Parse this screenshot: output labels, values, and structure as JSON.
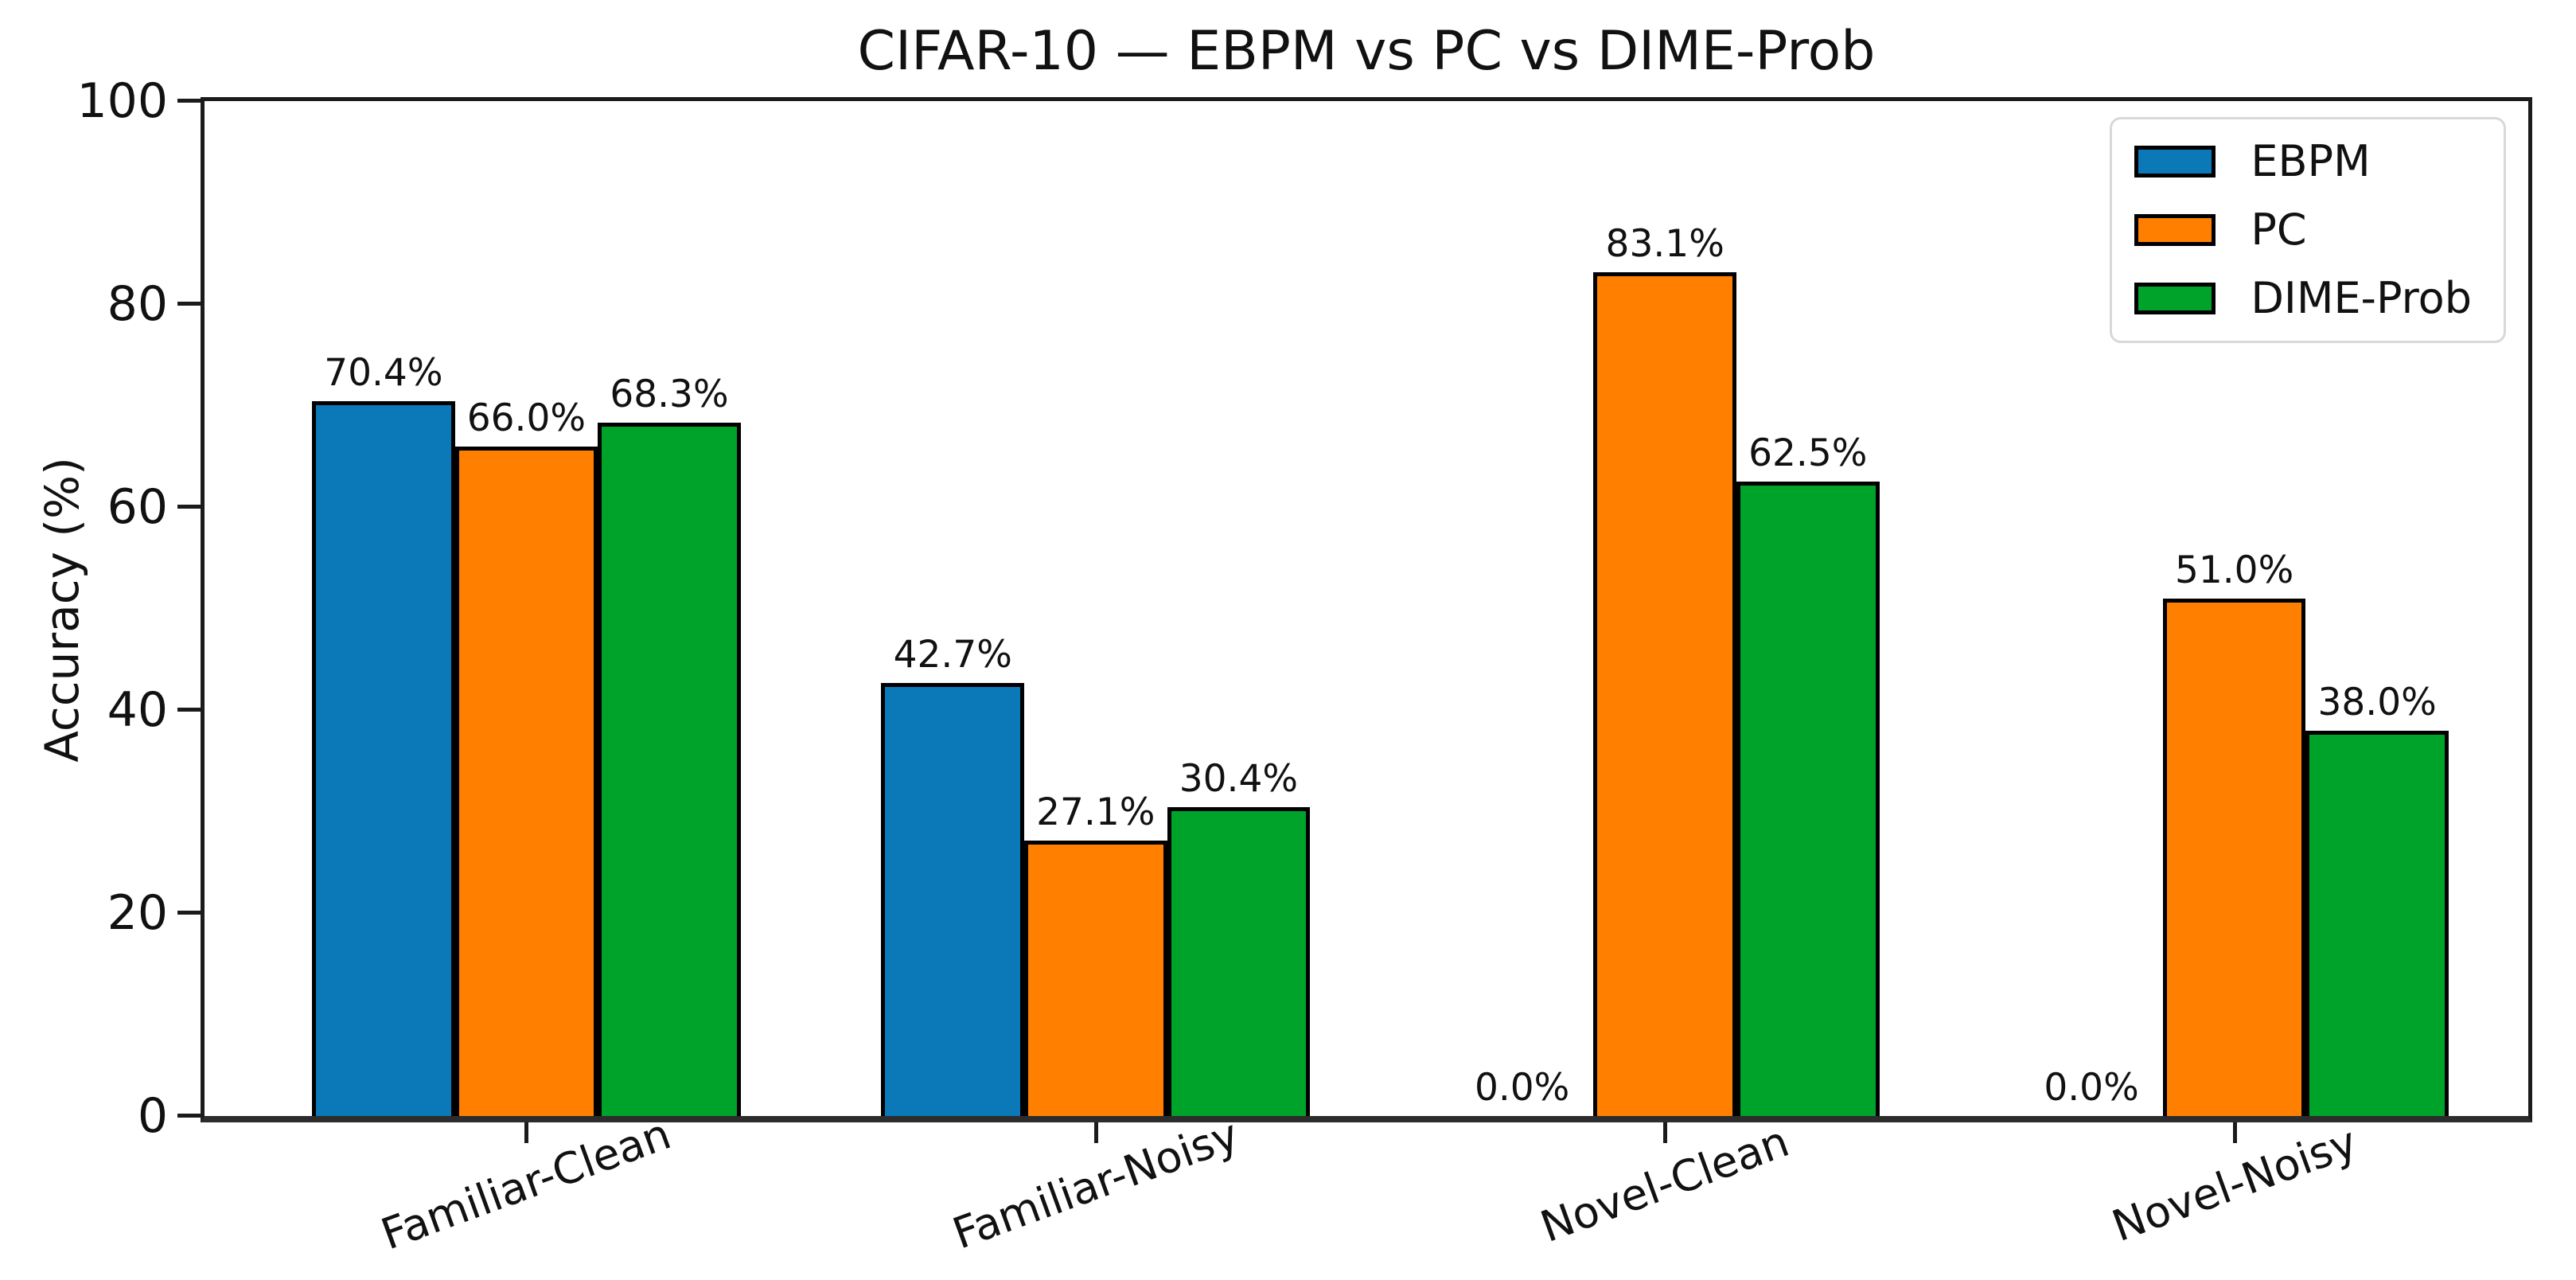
{
  "figure": {
    "title": "CIFAR-10 — EBPM vs PC vs DIME-Prob"
  },
  "chart_data": {
    "type": "bar",
    "title": "CIFAR-10 — EBPM vs PC vs DIME-Prob",
    "xlabel": "",
    "ylabel": "Accuracy (%)",
    "ylim": [
      0,
      100
    ],
    "y_ticks": [
      0,
      20,
      40,
      60,
      80,
      100
    ],
    "grid": false,
    "legend_position": "upper-right",
    "bar_edge_color": "#000000",
    "value_label_suffix": "%",
    "categories": [
      "Familiar-Clean",
      "Familiar-Noisy",
      "Novel-Clean",
      "Novel-Noisy"
    ],
    "series": [
      {
        "name": "EBPM",
        "color": "#0b78b8",
        "values": [
          70.4,
          42.7,
          0.0,
          0.0
        ],
        "labels": [
          "70.4%",
          "42.7%",
          "0.0%",
          "0.0%"
        ]
      },
      {
        "name": "PC",
        "color": "#ff8000",
        "values": [
          66.0,
          27.1,
          83.1,
          51.0
        ],
        "labels": [
          "66.0%",
          "27.1%",
          "83.1%",
          "51.0%"
        ]
      },
      {
        "name": "DIME-Prob",
        "color": "#00a32a",
        "values": [
          68.3,
          30.4,
          62.5,
          38.0
        ],
        "labels": [
          "68.3%",
          "30.4%",
          "62.5%",
          "38.0%"
        ]
      }
    ]
  }
}
